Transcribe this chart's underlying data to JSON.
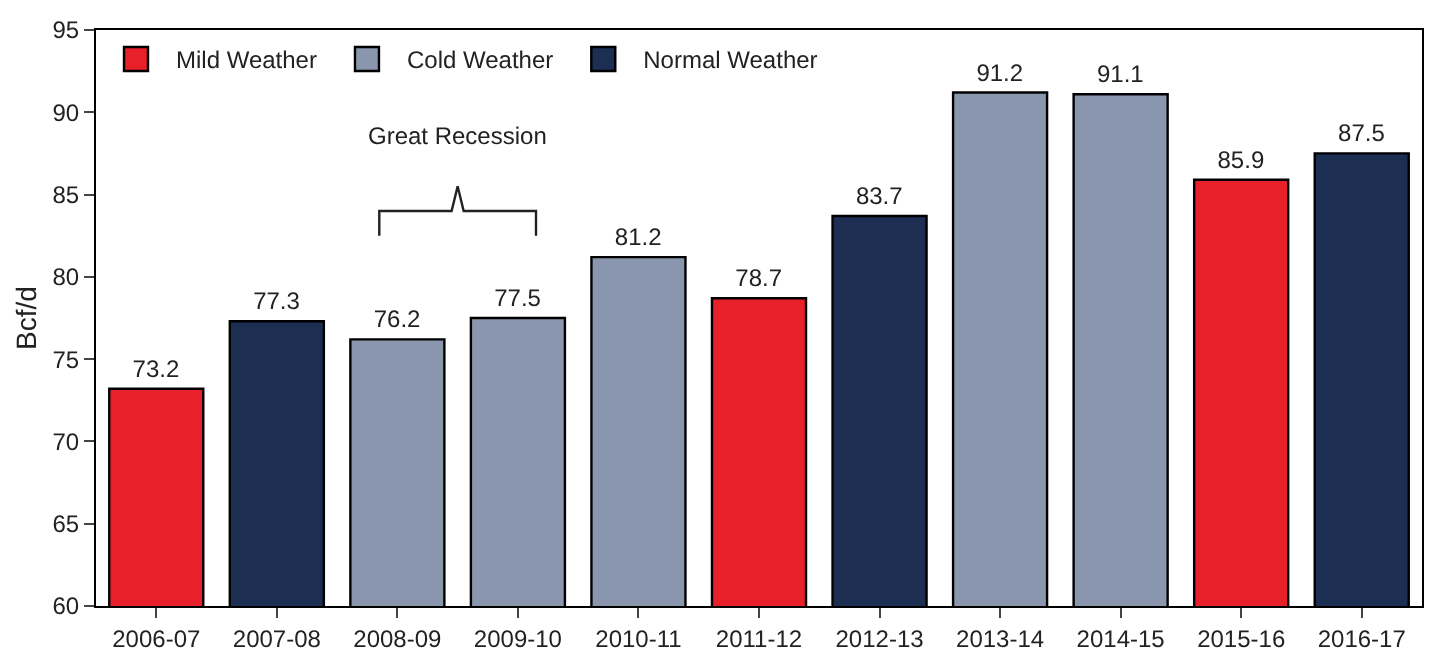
{
  "chart_data": {
    "type": "bar",
    "ylabel": "Bcf/d",
    "categories": [
      "2006-07",
      "2007-08",
      "2008-09",
      "2009-10",
      "2010-11",
      "2011-12",
      "2012-13",
      "2013-14",
      "2014-15",
      "2015-16",
      "2016-17"
    ],
    "series": [
      {
        "name": "Mild Weather",
        "color": "#e8202a",
        "values": [
          73.2,
          null,
          null,
          null,
          null,
          78.7,
          null,
          null,
          null,
          85.9,
          null
        ]
      },
      {
        "name": "Cold Weather",
        "color": "#8a96ad",
        "values": [
          null,
          null,
          76.2,
          77.5,
          81.2,
          null,
          null,
          91.2,
          91.1,
          null,
          null
        ]
      },
      {
        "name": "Normal Weather",
        "color": "#1c2e52",
        "values": [
          null,
          77.3,
          null,
          null,
          null,
          null,
          83.7,
          null,
          null,
          null,
          87.5
        ]
      }
    ],
    "annotations": [
      "Great Recession"
    ],
    "ylim": [
      60,
      95
    ],
    "yticks": [
      60,
      65,
      70,
      75,
      80,
      85,
      90,
      95
    ],
    "data_labels": true,
    "legend": "top left"
  }
}
